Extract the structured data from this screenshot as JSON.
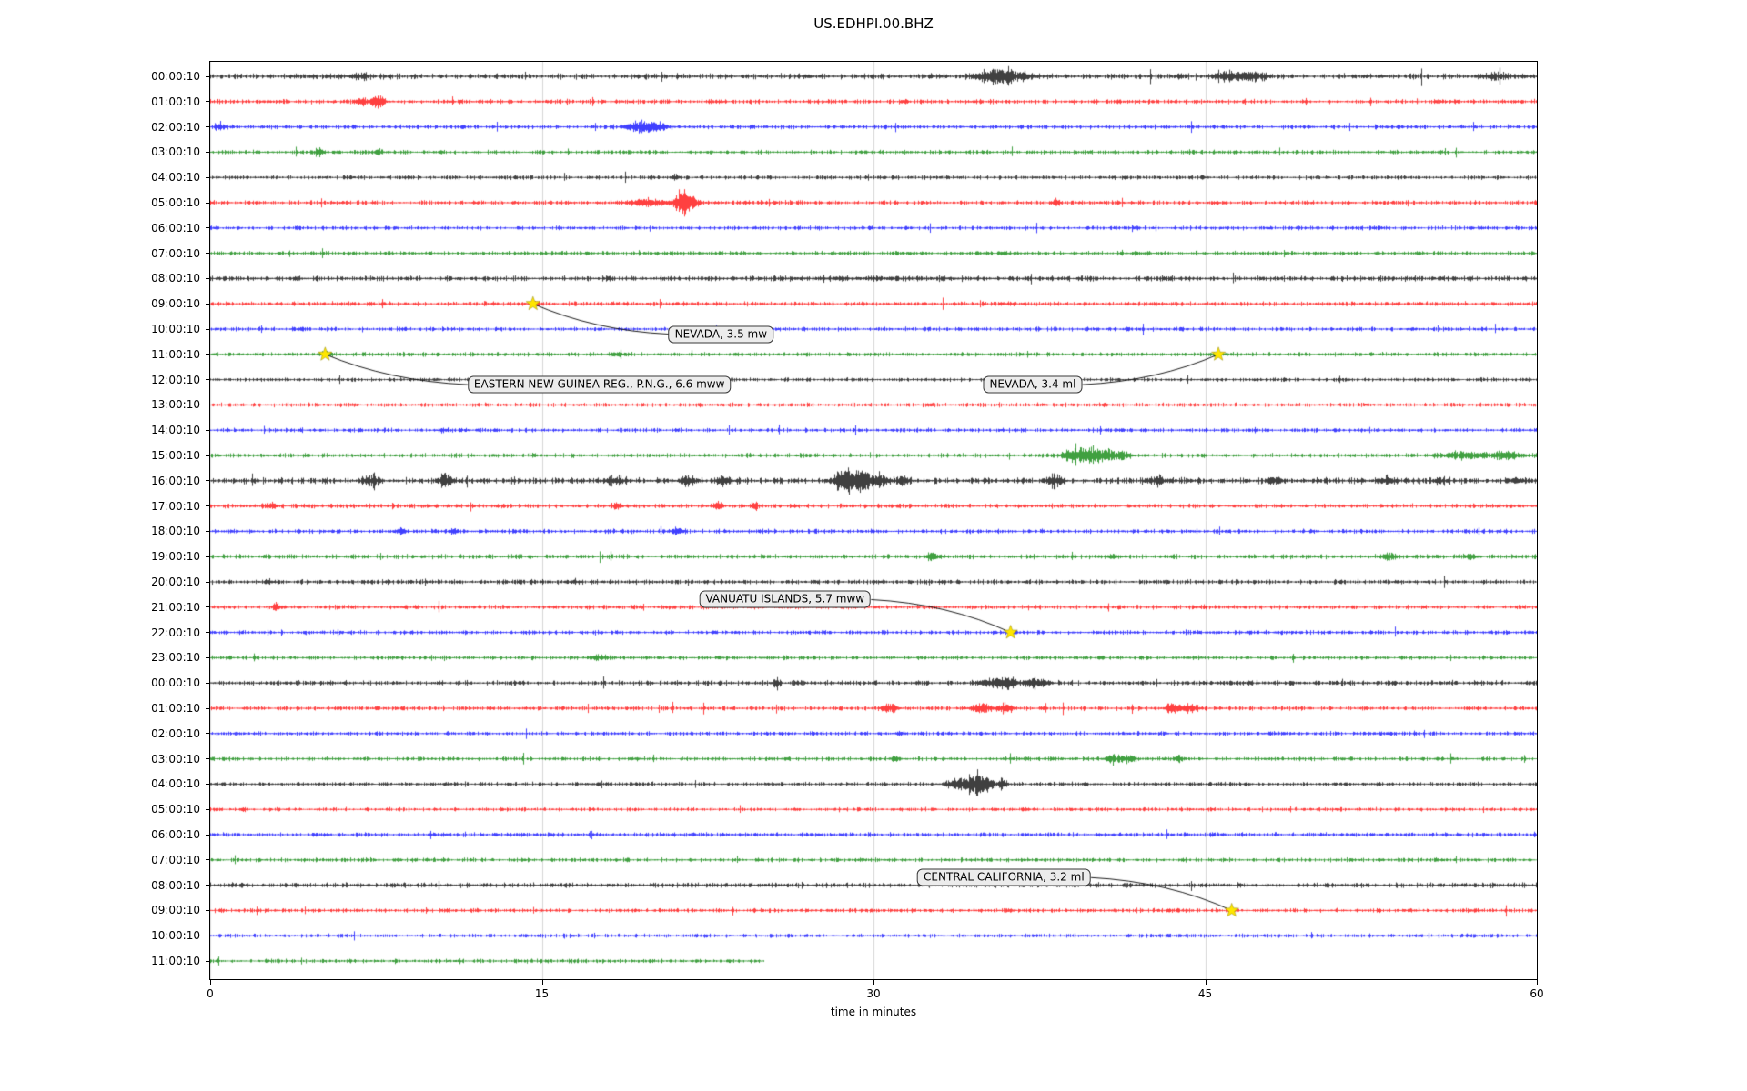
{
  "title": "US.EDHPI.00.BHZ",
  "xlabel": "time in minutes",
  "chart_data": {
    "type": "line",
    "subtype": "helicorder-drum-plot",
    "station": "US.EDHPI.00.BHZ",
    "x_range": [
      0,
      60
    ],
    "x_ticks": [
      0,
      15,
      30,
      45,
      60
    ],
    "grid": "vertical",
    "grid_color": "#cccccc",
    "trace_colors": [
      "#000000",
      "#ff0000",
      "#0000ff",
      "#008000"
    ],
    "marker_color": "#ffe600",
    "rows": [
      {
        "label": "00:00:10",
        "base": 2.0,
        "end": 60,
        "bursts": [
          [
            6.8,
            0.6,
            2.2
          ],
          [
            35.3,
            0.9,
            5.5
          ],
          [
            36.3,
            1.2,
            4.5
          ],
          [
            46.2,
            1.0,
            4.5
          ],
          [
            47.3,
            0.6,
            3.5
          ],
          [
            58.2,
            0.8,
            2.5
          ]
        ]
      },
      {
        "label": "01:00:10",
        "base": 1.6,
        "end": 60,
        "bursts": [
          [
            6.9,
            0.4,
            2.5
          ],
          [
            7.6,
            0.35,
            6.5
          ]
        ]
      },
      {
        "label": "02:00:10",
        "base": 1.6,
        "end": 60,
        "bursts": [
          [
            0.4,
            0.3,
            4.0
          ],
          [
            19.4,
            0.8,
            4.5
          ],
          [
            20.2,
            0.7,
            4.0
          ]
        ]
      },
      {
        "label": "03:00:10",
        "base": 1.5,
        "end": 60,
        "bursts": [
          [
            4.9,
            0.2,
            4.0
          ],
          [
            7.6,
            0.25,
            3.5
          ]
        ]
      },
      {
        "label": "04:00:10",
        "base": 1.5,
        "end": 60,
        "bursts": [
          [
            21.0,
            0.3,
            1.5
          ]
        ]
      },
      {
        "label": "05:00:10",
        "base": 1.6,
        "end": 60,
        "bursts": [
          [
            19.8,
            1.2,
            3.0
          ],
          [
            21.3,
            0.5,
            11.0
          ],
          [
            21.8,
            0.4,
            5.0
          ],
          [
            38.2,
            0.3,
            2.0
          ]
        ]
      },
      {
        "label": "06:00:10",
        "base": 1.5,
        "end": 60,
        "bursts": []
      },
      {
        "label": "07:00:10",
        "base": 1.5,
        "end": 60,
        "bursts": [
          [
            35.9,
            0.3,
            1.8
          ]
        ]
      },
      {
        "label": "08:00:10",
        "base": 1.9,
        "end": 60,
        "bursts": [
          [
            30.0,
            6.0,
            0.6
          ]
        ]
      },
      {
        "label": "09:00:10",
        "base": 1.6,
        "end": 60,
        "bursts": [
          [
            14.6,
            0.3,
            1.8
          ]
        ]
      },
      {
        "label": "10:00:10",
        "base": 1.5,
        "end": 60,
        "bursts": [
          [
            4.1,
            0.25,
            1.8
          ]
        ]
      },
      {
        "label": "11:00:10",
        "base": 1.5,
        "end": 60,
        "bursts": [
          [
            5.2,
            0.3,
            1.6
          ],
          [
            18.4,
            0.5,
            2.4
          ],
          [
            45.6,
            0.3,
            1.6
          ]
        ]
      },
      {
        "label": "12:00:10",
        "base": 1.4,
        "end": 60,
        "bursts": [
          [
            10.2,
            0.2,
            1.5
          ]
        ]
      },
      {
        "label": "13:00:10",
        "base": 1.5,
        "end": 60,
        "bursts": []
      },
      {
        "label": "14:00:10",
        "base": 1.5,
        "end": 60,
        "bursts": [
          [
            10.6,
            0.3,
            1.6
          ]
        ]
      },
      {
        "label": "15:00:10",
        "base": 1.6,
        "end": 60,
        "bursts": [
          [
            39.3,
            0.9,
            7.5
          ],
          [
            40.3,
            0.9,
            5.0
          ],
          [
            41.2,
            0.6,
            3.5
          ],
          [
            56.6,
            1.6,
            2.8
          ],
          [
            58.6,
            1.2,
            2.6
          ]
        ]
      },
      {
        "label": "16:00:10",
        "base": 2.2,
        "end": 60,
        "bursts": [
          [
            7.3,
            0.4,
            4.5
          ],
          [
            10.6,
            0.4,
            7.0
          ],
          [
            18.3,
            0.6,
            3.5
          ],
          [
            21.6,
            0.5,
            5.0
          ],
          [
            23.2,
            0.4,
            4.0
          ],
          [
            28.7,
            0.7,
            11.0
          ],
          [
            29.5,
            0.6,
            9.0
          ],
          [
            30.3,
            0.5,
            5.0
          ],
          [
            31.3,
            0.4,
            4.5
          ],
          [
            38.2,
            0.4,
            7.0
          ],
          [
            42.9,
            0.5,
            3.5
          ],
          [
            48.1,
            0.4,
            3.0
          ],
          [
            53.2,
            0.5,
            3.0
          ],
          [
            55.6,
            0.4,
            3.0
          ],
          [
            59.0,
            0.4,
            2.8
          ]
        ]
      },
      {
        "label": "17:00:10",
        "base": 1.6,
        "end": 60,
        "bursts": [
          [
            2.7,
            0.4,
            2.6
          ],
          [
            18.4,
            0.3,
            3.0
          ],
          [
            22.9,
            0.3,
            3.0
          ],
          [
            24.6,
            0.2,
            5.0
          ]
        ]
      },
      {
        "label": "18:00:10",
        "base": 1.6,
        "end": 60,
        "bursts": [
          [
            8.6,
            0.3,
            3.0
          ],
          [
            11.0,
            0.3,
            2.4
          ],
          [
            21.1,
            0.4,
            2.6
          ]
        ]
      },
      {
        "label": "19:00:10",
        "base": 1.7,
        "end": 60,
        "bursts": [
          [
            32.6,
            0.35,
            3.0
          ],
          [
            40.8,
            0.3,
            2.2
          ],
          [
            53.3,
            0.5,
            3.2
          ],
          [
            57.0,
            0.4,
            2.2
          ]
        ]
      },
      {
        "label": "20:00:10",
        "base": 1.7,
        "end": 60,
        "bursts": [
          [
            2.6,
            0.3,
            1.8
          ],
          [
            16.4,
            0.3,
            1.6
          ]
        ]
      },
      {
        "label": "21:00:10",
        "base": 1.5,
        "end": 60,
        "bursts": [
          [
            3.0,
            0.25,
            3.0
          ]
        ]
      },
      {
        "label": "22:00:10",
        "base": 1.5,
        "end": 60,
        "bursts": [
          [
            36.2,
            0.25,
            1.6
          ]
        ]
      },
      {
        "label": "23:00:10",
        "base": 1.5,
        "end": 60,
        "bursts": [
          [
            17.5,
            0.5,
            2.2
          ]
        ]
      },
      {
        "label": "00:00:10",
        "base": 1.8,
        "end": 60,
        "bursts": [
          [
            25.6,
            0.2,
            6.0
          ],
          [
            35.4,
            0.8,
            4.0
          ],
          [
            36.1,
            0.5,
            4.5
          ],
          [
            37.2,
            0.5,
            4.5
          ],
          [
            37.8,
            0.3,
            3.5
          ]
        ]
      },
      {
        "label": "01:00:10",
        "base": 1.6,
        "end": 60,
        "bursts": [
          [
            30.7,
            0.5,
            4.0
          ],
          [
            34.8,
            0.6,
            4.0
          ],
          [
            35.9,
            0.5,
            6.0
          ],
          [
            43.6,
            0.6,
            4.0
          ],
          [
            44.4,
            0.4,
            3.5
          ]
        ]
      },
      {
        "label": "02:00:10",
        "base": 1.5,
        "end": 60,
        "bursts": [
          [
            31.2,
            0.3,
            1.6
          ]
        ]
      },
      {
        "label": "03:00:10",
        "base": 1.5,
        "end": 60,
        "bursts": [
          [
            31.0,
            0.3,
            2.0
          ],
          [
            40.9,
            0.6,
            4.0
          ],
          [
            41.6,
            0.4,
            3.0
          ],
          [
            43.8,
            0.3,
            2.6
          ]
        ]
      },
      {
        "label": "04:00:10",
        "base": 1.5,
        "end": 60,
        "bursts": [
          [
            33.7,
            0.5,
            6.0
          ],
          [
            34.5,
            0.5,
            11.0
          ],
          [
            35.1,
            0.5,
            7.0
          ],
          [
            35.8,
            0.3,
            4.0
          ]
        ]
      },
      {
        "label": "05:00:10",
        "base": 1.4,
        "end": 60,
        "bursts": [
          [
            1.5,
            0.2,
            1.6
          ]
        ]
      },
      {
        "label": "06:00:10",
        "base": 1.5,
        "end": 60,
        "bursts": []
      },
      {
        "label": "07:00:10",
        "base": 1.5,
        "end": 60,
        "bursts": []
      },
      {
        "label": "08:00:10",
        "base": 1.8,
        "end": 60,
        "bursts": []
      },
      {
        "label": "09:00:10",
        "base": 1.5,
        "end": 60,
        "bursts": [
          [
            46.2,
            0.2,
            1.5
          ]
        ]
      },
      {
        "label": "10:00:10",
        "base": 1.4,
        "end": 60,
        "bursts": []
      },
      {
        "label": "11:00:10",
        "base": 1.5,
        "end": 25,
        "bursts": []
      }
    ],
    "events": [
      {
        "name": "NEVADA, 3.5 mw",
        "marker": {
          "row": 9,
          "minute": 14.6
        },
        "label_pos": {
          "row": 10.2,
          "minute": 23.1
        }
      },
      {
        "name": "EASTERN NEW GUINEA REG., P.N.G., 6.6 mww",
        "marker": {
          "row": 11,
          "minute": 5.2
        },
        "label_pos": {
          "row": 12.2,
          "minute": 17.6
        }
      },
      {
        "name": "NEVADA, 3.4 ml",
        "marker": {
          "row": 11,
          "minute": 45.6
        },
        "label_pos": {
          "row": 12.2,
          "minute": 37.2
        }
      },
      {
        "name": "VANUATU ISLANDS, 5.7 mww",
        "marker": {
          "row": 22,
          "minute": 36.2
        },
        "label_pos": {
          "row": 20.7,
          "minute": 26.0
        }
      },
      {
        "name": "CENTRAL CALIFORNIA, 3.2 ml",
        "marker": {
          "row": 33,
          "minute": 46.2
        },
        "label_pos": {
          "row": 31.7,
          "minute": 35.9
        }
      }
    ]
  }
}
